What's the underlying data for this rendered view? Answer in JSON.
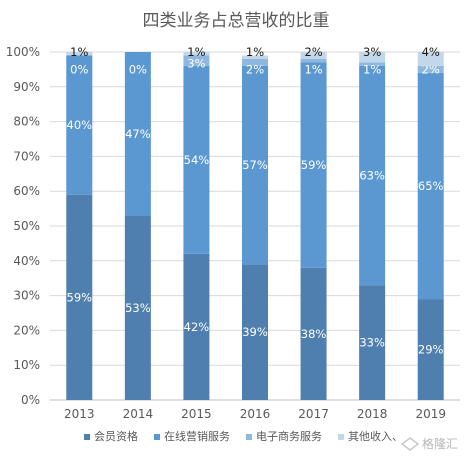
{
  "chart_data": {
    "type": "bar",
    "stacked": true,
    "title": "四类业务占总营收的比重",
    "categories": [
      "2013",
      "2014",
      "2015",
      "2016",
      "2017",
      "2018",
      "2019"
    ],
    "y_ticks": [
      "0%",
      "10%",
      "20%",
      "30%",
      "40%",
      "50%",
      "60%",
      "70%",
      "80%",
      "90%",
      "100%"
    ],
    "ylim": [
      0,
      100
    ],
    "grid": true,
    "legend_position": "bottom",
    "series": [
      {
        "name": "会员资格",
        "values": [
          59,
          53,
          42,
          39,
          38,
          33,
          29
        ],
        "labels": [
          "59%",
          "53%",
          "42%",
          "39%",
          "38%",
          "33%",
          "29%"
        ],
        "color": "#4e7fae"
      },
      {
        "name": "在线营销服务",
        "values": [
          40,
          47,
          54,
          57,
          59,
          63,
          65
        ],
        "labels": [
          "40%",
          "47%",
          "54%",
          "57%",
          "59%",
          "63%",
          "65%"
        ],
        "color": "#5b98d2"
      },
      {
        "name": "电子商务服务",
        "values": [
          0,
          0,
          3,
          2,
          1,
          1,
          2
        ],
        "labels": [
          "0%",
          "0%",
          "3%",
          "2%",
          "1%",
          "1%",
          "2%"
        ],
        "color": "#8fb8de"
      },
      {
        "name": "其他收入",
        "values": [
          1,
          0,
          1,
          1,
          2,
          3,
          4
        ],
        "labels": [
          "1%",
          "",
          "1%",
          "1%",
          "2%",
          "3%",
          "4%"
        ],
        "color": "#c2d7ea"
      }
    ],
    "legend_suffix": "、"
  },
  "watermark": {
    "text": "格隆汇"
  }
}
